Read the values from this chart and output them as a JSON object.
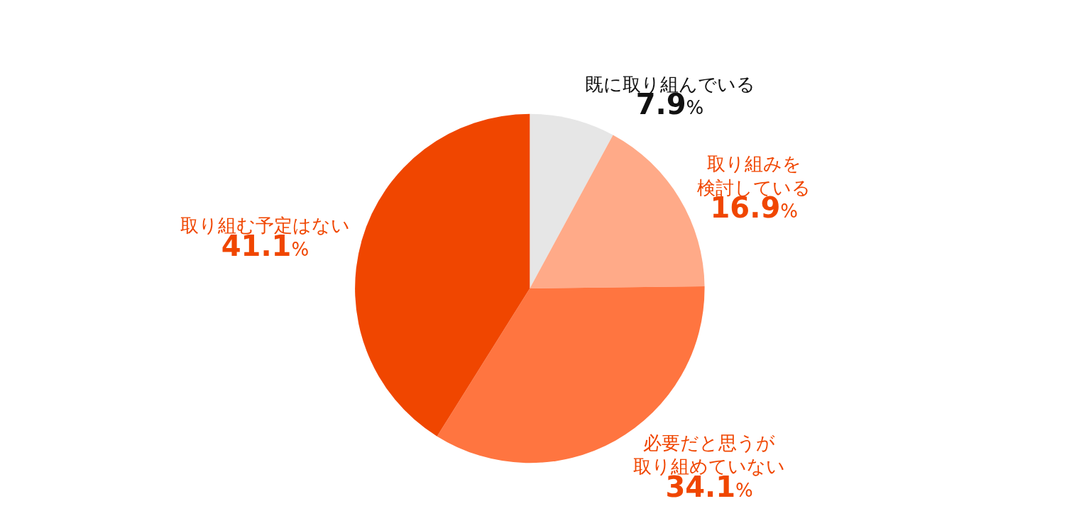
{
  "chart_data": {
    "type": "pie",
    "categories": [
      "既に取り組んでいる",
      "取り組みを検討している",
      "必要だと思うが取り組めていない",
      "取り組む予定はない"
    ],
    "values": [
      7.9,
      16.9,
      34.1,
      41.1
    ],
    "data_labels": true,
    "value_labels": [
      "7.9%",
      "16.9%",
      "34.1%",
      "41.1%"
    ],
    "colors": [
      "#e6e6e6",
      "#ffaa88",
      "#ff7540",
      "#f04600"
    ]
  }
}
